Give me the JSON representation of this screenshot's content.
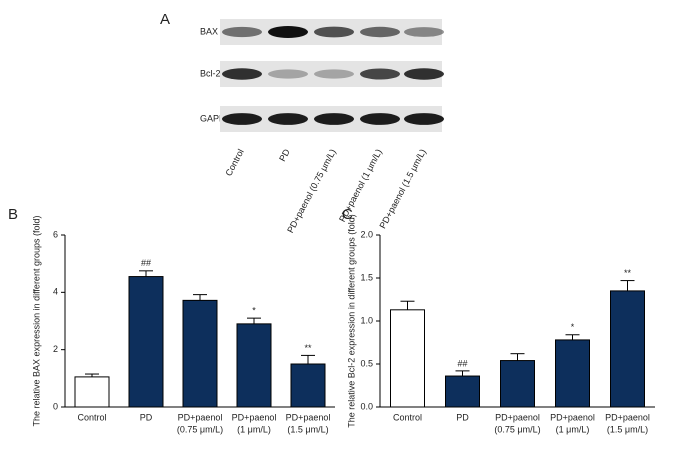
{
  "panel_a": {
    "label": "A",
    "rows": [
      "BAX",
      "Bcl-2",
      "GAPDH"
    ],
    "lanes": [
      "Control",
      "PD",
      "PD+paenol (0.75 μm/L)",
      "PD+paenol (1 μm/L)",
      "PD+paenol (1.5 μm/L)"
    ]
  },
  "chart_data": [
    {
      "type": "bar",
      "panel": "B",
      "y_label": "The relative BAX expression in different groups (fold)",
      "categories": [
        [
          "Control"
        ],
        [
          "PD"
        ],
        [
          "PD+paenol",
          "(0.75 μm/L)"
        ],
        [
          "PD+paenol",
          "(1 μm/L)"
        ],
        [
          "PD+paenol",
          "(1.5 μm/L)"
        ]
      ],
      "values": [
        1.05,
        4.55,
        3.72,
        2.9,
        1.5
      ],
      "errors": [
        0.1,
        0.2,
        0.2,
        0.2,
        0.3
      ],
      "annotations": [
        null,
        "##",
        null,
        "*",
        "**"
      ],
      "colors": [
        "#ffffff",
        "#0d2f5c",
        "#0d2f5c",
        "#0d2f5c",
        "#0d2f5c"
      ],
      "ylim": [
        0,
        6
      ],
      "yticks": [
        0,
        2,
        4,
        6
      ]
    },
    {
      "type": "bar",
      "panel": "C",
      "y_label": "The relative Bcl-2 expression in different groups (fold)",
      "categories": [
        [
          "Control"
        ],
        [
          "PD"
        ],
        [
          "PD+paenol",
          "(0.75 μm/L)"
        ],
        [
          "PD+paenol",
          "(1 μm/L)"
        ],
        [
          "PD+paenol",
          "(1.5 μm/L)"
        ]
      ],
      "values": [
        1.13,
        0.36,
        0.54,
        0.78,
        1.35
      ],
      "errors": [
        0.1,
        0.06,
        0.08,
        0.06,
        0.12
      ],
      "annotations": [
        null,
        "##",
        null,
        "*",
        "**"
      ],
      "colors": [
        "#ffffff",
        "#0d2f5c",
        "#0d2f5c",
        "#0d2f5c",
        "#0d2f5c"
      ],
      "ylim": [
        0,
        2
      ],
      "yticks": [
        {
          "value": 0,
          "label": "0.0"
        },
        0.5,
        {
          "value": 1,
          "label": "1.0"
        },
        1.5,
        {
          "value": 2,
          "label": "2.0"
        }
      ]
    }
  ]
}
